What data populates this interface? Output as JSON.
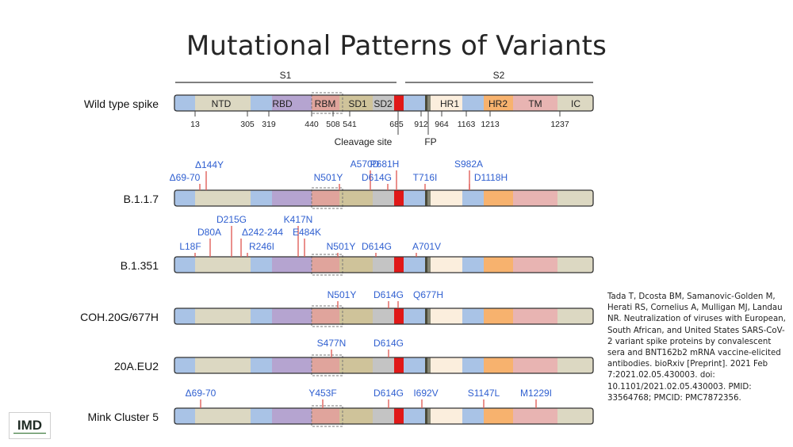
{
  "title": "Mutational Patterns of Variants",
  "citation": "Tada T, Dcosta BM, Samanovic-Golden M, Herati RS, Cornelius A, Mulligan MJ, Landau NR. Neutralization of viruses with European, South African, and United States SARS-CoV-2 variant spike proteins by convalescent sera and BNT162b2 mRNA vaccine-elicited antibodies. bioRxiv [Preprint]. 2021 Feb 7:2021.02.05.430003. doi: 10.1101/2021.02.05.430003. PMID: 33564768; PMCID: PMC7872356.",
  "logo_text": "IMD",
  "colors": {
    "mutation_label": "#2f5fd0",
    "mutation_tick": "#e0605a",
    "bar_outline": "#333333",
    "NTD": "#dcd8c2",
    "RBD": "#b5a4d0",
    "RBM": "#e0a49c",
    "SD1": "#cfc39a",
    "SD2": "#c4c4c4",
    "cleavage": "#e01818",
    "FP": "#888877",
    "HR1": "#fbeedd",
    "HR2": "#f7b26e",
    "TM": "#e8b4b2",
    "IC": "#dcd8c2",
    "gap": "#a9c3e6"
  },
  "regions": {
    "S1": "S1",
    "S2": "S2",
    "labels": [
      "NTD",
      "RBD",
      "RBM",
      "SD1",
      "SD2",
      "HR1",
      "HR2",
      "TM",
      "IC"
    ]
  },
  "positions": [
    "13",
    "305",
    "319",
    "440",
    "508",
    "541",
    "685",
    "912",
    "964",
    "1163",
    "1213",
    "1237"
  ],
  "annotations": {
    "cleavage": "Cleavage site",
    "fp": "FP"
  },
  "wild_type_label": "Wild type spike",
  "variants": [
    {
      "name": "B.1.1.7",
      "mutations": [
        "Δ69-70",
        "Δ144Y",
        "N501Y",
        "A570D",
        "D614G",
        "P681H",
        "T716I",
        "S982A",
        "D1118H"
      ]
    },
    {
      "name": "B.1.351",
      "mutations": [
        "L18F",
        "D80A",
        "D215G",
        "Δ242-244",
        "R246I",
        "K417N",
        "E484K",
        "N501Y",
        "D614G",
        "A701V"
      ]
    },
    {
      "name": "COH.20G/677H",
      "mutations": [
        "N501Y",
        "D614G",
        "Q677H"
      ]
    },
    {
      "name": "20A.EU2",
      "mutations": [
        "S477N",
        "D614G"
      ]
    },
    {
      "name": "Mink Cluster 5",
      "mutations": [
        "Δ69-70",
        "Y453F",
        "D614G",
        "I692V",
        "S1147L",
        "M1229I"
      ]
    }
  ]
}
